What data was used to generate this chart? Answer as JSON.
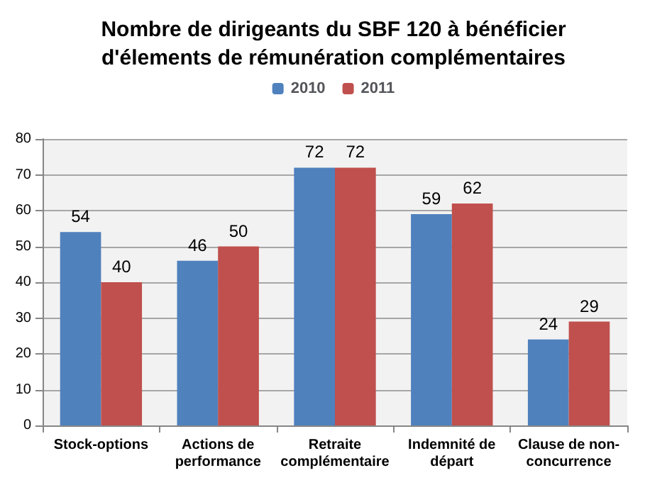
{
  "chart_data": {
    "type": "bar",
    "title": "Nombre de dirigeants du SBF 120 à bénéficier\nd'élements de rémunération complémentaires",
    "categories": [
      "Stock-options",
      "Actions de\nperformance",
      "Retraite\ncomplémentaire",
      "Indemnité de\ndépart",
      "Clause de non-\nconcurrence"
    ],
    "series": [
      {
        "name": "2010",
        "color": "#4f81bd",
        "values": [
          54,
          46,
          72,
          59,
          24
        ]
      },
      {
        "name": "2011",
        "color": "#c0504d",
        "values": [
          40,
          50,
          72,
          62,
          29
        ]
      }
    ],
    "ylim": [
      0,
      80
    ],
    "yticks": [
      0,
      10,
      20,
      30,
      40,
      50,
      60,
      70,
      80
    ],
    "grid": "y",
    "legend": "top",
    "data_labels": true
  }
}
